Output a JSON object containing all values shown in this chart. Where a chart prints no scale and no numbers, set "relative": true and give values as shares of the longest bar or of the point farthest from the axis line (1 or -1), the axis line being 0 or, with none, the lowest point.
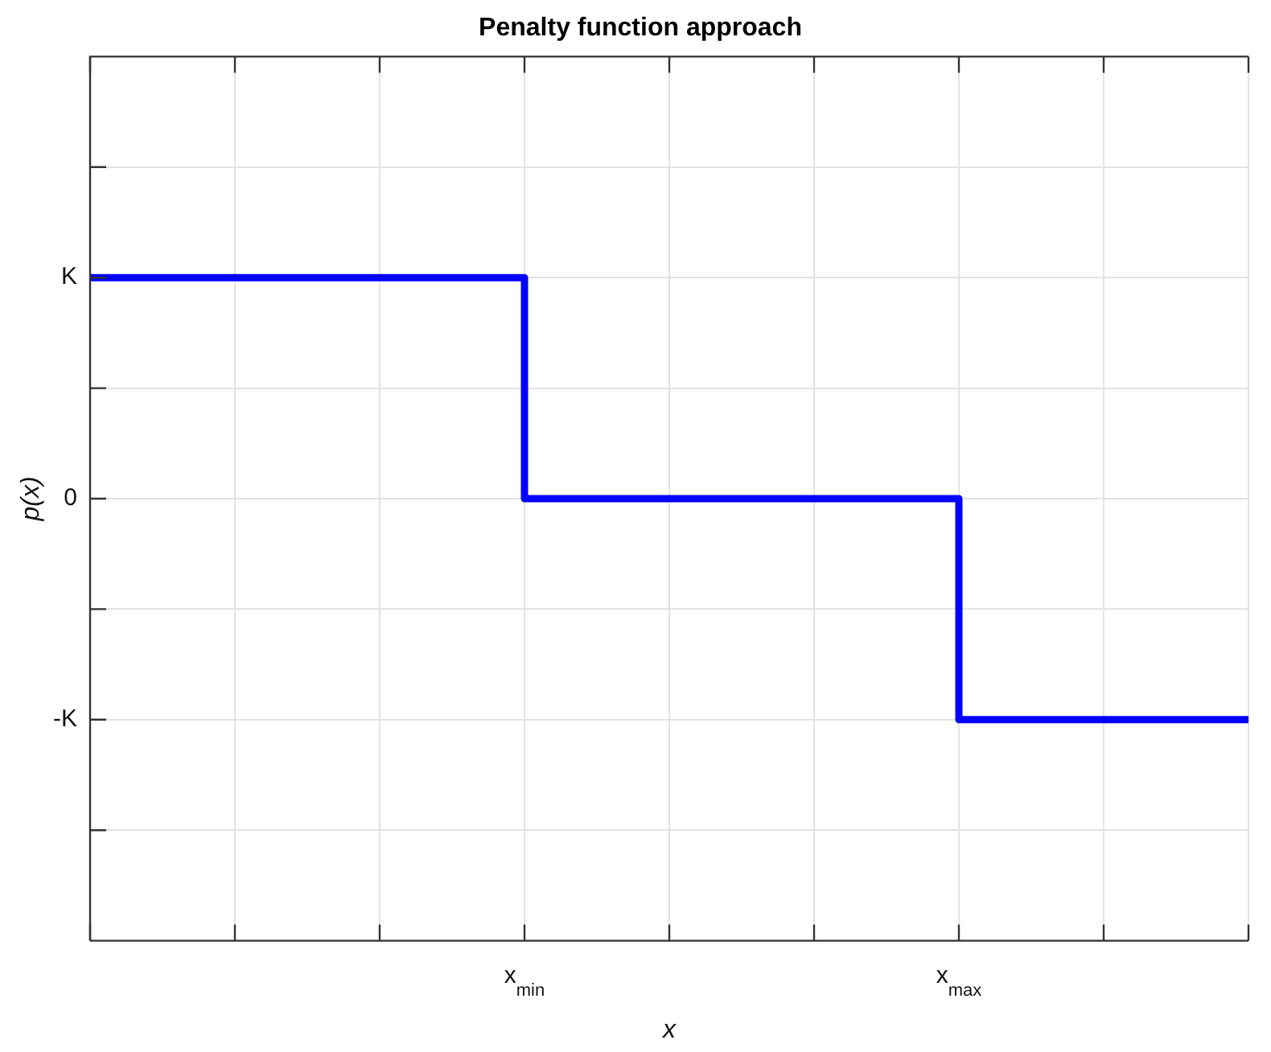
{
  "chart_data": {
    "type": "step",
    "title": "Penalty function approach",
    "xlabel": "x",
    "ylabel": "p(x)",
    "relative": true,
    "categories": [
      null,
      null,
      null,
      "x$_{min}$",
      null,
      null,
      "x$_{max}$",
      null,
      null
    ],
    "series": [
      {
        "color": "#0000ff",
        "values": [
          1,
          1,
          1,
          0,
          0,
          0,
          -1,
          -1,
          -1
        ]
      }
    ],
    "annotations": [
      "K",
      "0",
      "-K"
    ],
    "grid": true,
    "legend": false,
    "marker": "none",
    "line_style": "solid"
  }
}
